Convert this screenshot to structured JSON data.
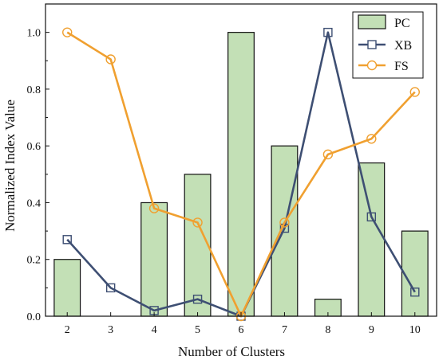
{
  "chart_data": {
    "type": "bar+line",
    "title": "",
    "xlabel": "Number of Clusters",
    "ylabel": "Normalized Index Value",
    "categories": [
      "2",
      "3",
      "4",
      "5",
      "6",
      "7",
      "8",
      "9",
      "10"
    ],
    "ylim": [
      0,
      1.1
    ],
    "yticks": [
      "0.0",
      "0.2",
      "0.4",
      "0.6",
      "0.8",
      "1.0"
    ],
    "series": [
      {
        "name": "PC",
        "type": "bar",
        "color": "#c3e0b6",
        "edge_color": "#111111",
        "values": [
          0.2,
          0.0,
          0.4,
          0.5,
          1.0,
          0.6,
          0.06,
          0.54,
          0.3
        ]
      },
      {
        "name": "XB",
        "type": "line",
        "marker": "square",
        "color": "#3e4f73",
        "values": [
          0.27,
          0.1,
          0.02,
          0.06,
          0.0,
          0.31,
          1.0,
          0.35,
          0.085
        ]
      },
      {
        "name": "FS",
        "type": "line",
        "marker": "circle",
        "color": "#f0a030",
        "values": [
          1.0,
          0.905,
          0.38,
          0.33,
          0.0,
          0.33,
          0.57,
          0.625,
          0.79
        ]
      }
    ],
    "grid": false,
    "legend_position": "top-right"
  }
}
